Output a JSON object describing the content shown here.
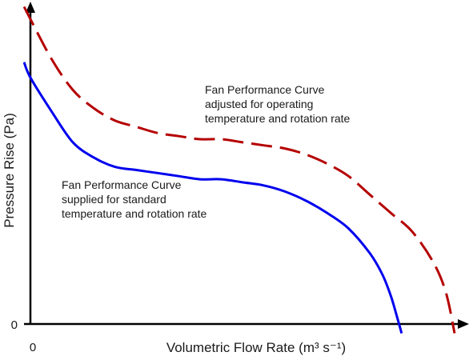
{
  "chart_data": {
    "type": "line",
    "title": "",
    "xlabel": "Volumetric Flow Rate (m³ s⁻¹)",
    "ylabel": "Pressure Rise (Pa)",
    "x_tick_labels": [
      "0"
    ],
    "y_tick_labels": [
      "0"
    ],
    "xlim": [
      0,
      1.0
    ],
    "ylim": [
      0,
      1.0
    ],
    "grid": false,
    "series": [
      {
        "color": "#0000ee",
        "style": "solid",
        "x": [
          -0.015,
          0.0,
          0.05,
          0.1,
          0.15,
          0.2,
          0.25,
          0.3,
          0.35,
          0.4,
          0.45,
          0.5,
          0.55,
          0.6,
          0.65,
          0.7,
          0.75,
          0.8,
          0.83,
          0.85,
          0.865,
          0.875
        ],
        "y": [
          0.85,
          0.8,
          0.69,
          0.59,
          0.54,
          0.51,
          0.5,
          0.49,
          0.48,
          0.47,
          0.47,
          0.46,
          0.45,
          0.43,
          0.4,
          0.36,
          0.31,
          0.23,
          0.16,
          0.09,
          0.02,
          -0.03
        ]
      },
      {
        "color": "#b50000",
        "style": "dashed",
        "x": [
          -0.015,
          0.0,
          0.05,
          0.1,
          0.15,
          0.2,
          0.25,
          0.3,
          0.35,
          0.4,
          0.45,
          0.5,
          0.55,
          0.6,
          0.65,
          0.7,
          0.75,
          0.8,
          0.85,
          0.9,
          0.95,
          0.98,
          1.0
        ],
        "y": [
          1.03,
          0.99,
          0.86,
          0.76,
          0.7,
          0.66,
          0.64,
          0.62,
          0.61,
          0.6,
          0.6,
          0.59,
          0.58,
          0.57,
          0.55,
          0.52,
          0.48,
          0.42,
          0.36,
          0.3,
          0.2,
          0.1,
          -0.03
        ]
      }
    ],
    "annotations": [
      {
        "lines": [
          "Fan Performance Curve",
          "adjusted for operating",
          "temperature and rotation rate"
        ],
        "x": 0.38,
        "y": 0.78
      },
      {
        "lines": [
          "Fan Performance Curve",
          "supplied for standard",
          "temperature and rotation rate"
        ],
        "x": 0.07,
        "y": 0.47
      }
    ]
  }
}
